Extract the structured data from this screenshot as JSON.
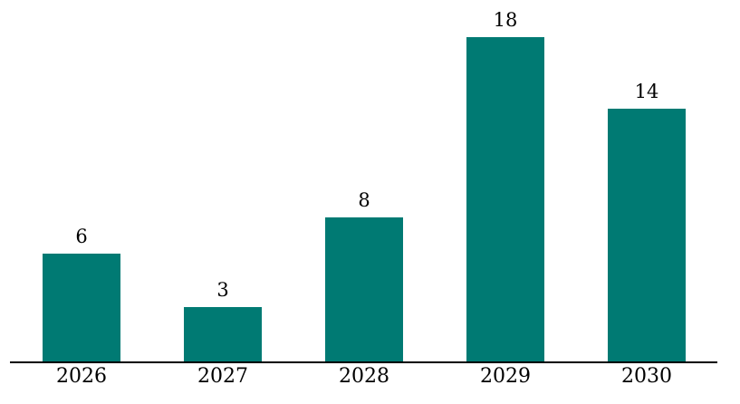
{
  "chart_data": {
    "type": "bar",
    "title": "",
    "xlabel": "",
    "ylabel": "",
    "categories": [
      "2026",
      "2027",
      "2028",
      "2029",
      "2030"
    ],
    "values": [
      6,
      3,
      8,
      18,
      14
    ],
    "data_labels": [
      "6",
      "3",
      "8",
      "18",
      "14"
    ],
    "ylim": [
      0,
      18
    ],
    "grid": false,
    "legend": false,
    "y_axis_visible": false,
    "x_axis_visible": true,
    "bar_color": "#007a73",
    "axis_color": "#000000",
    "text_color": "#000000",
    "background_color": "#ffffff"
  }
}
